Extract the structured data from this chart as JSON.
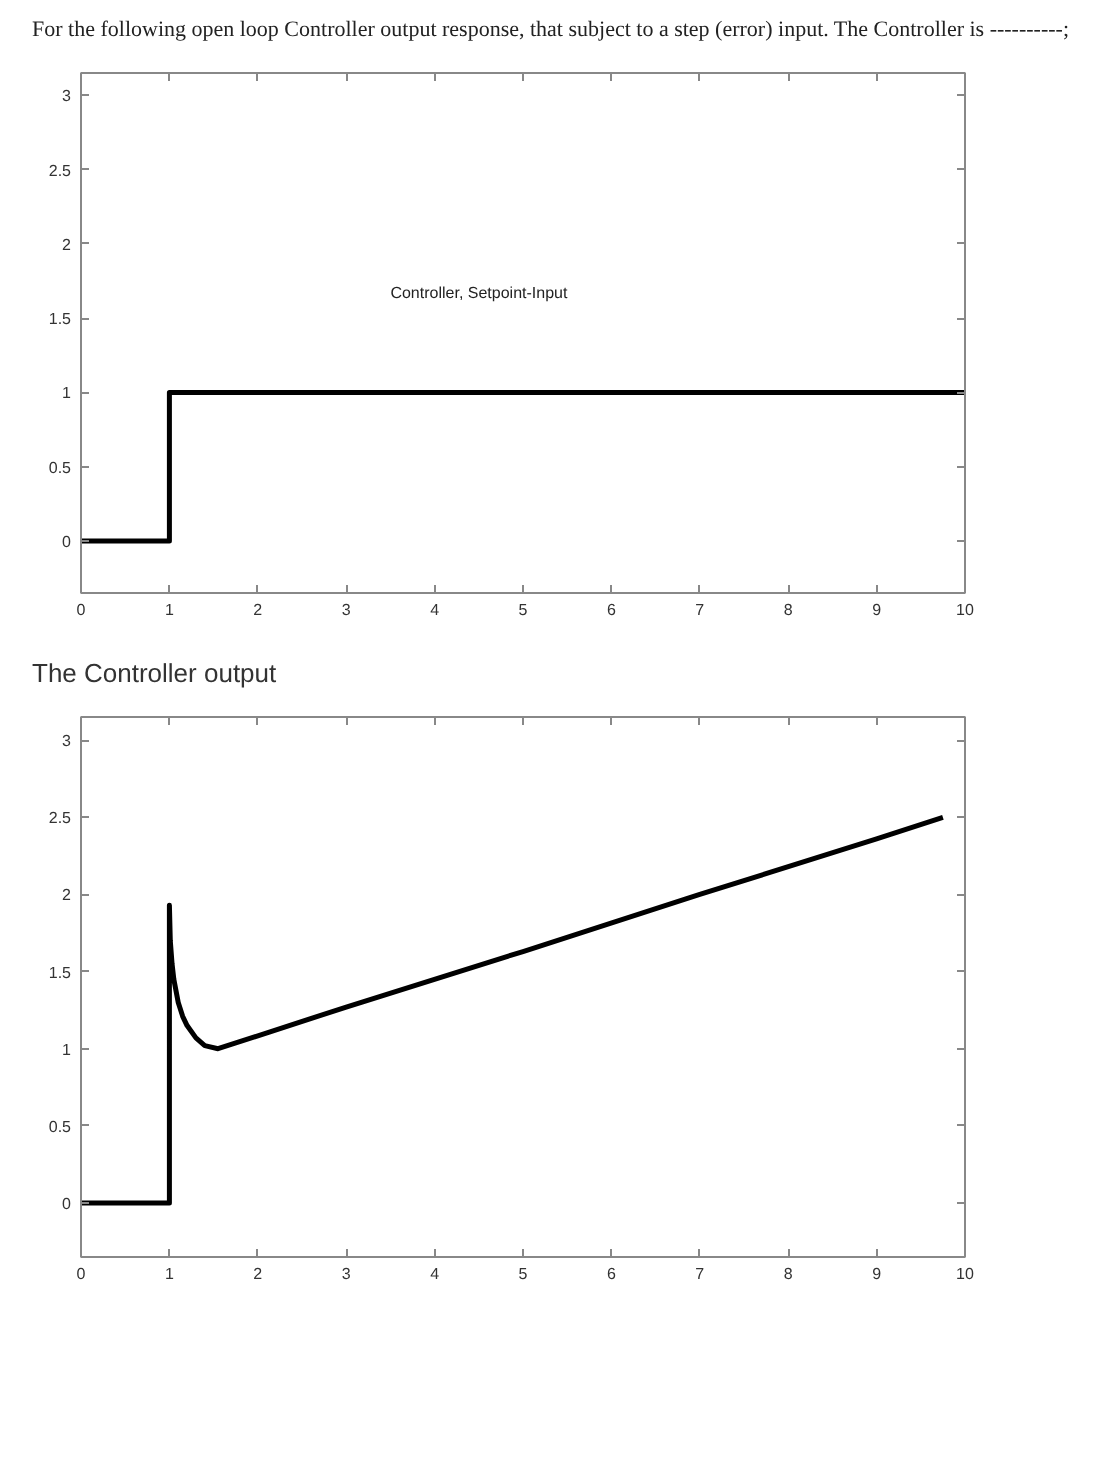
{
  "chart_data": [
    {
      "type": "line",
      "title": "For the following open loop Controller output response, that subject to a step (error) input. The Controller is ----------;",
      "annotations": [
        "Controller, Setpoint-Input"
      ],
      "series": [
        {
          "color": "#000000",
          "x": [
            0,
            1,
            1,
            10
          ],
          "values": [
            0,
            0,
            1,
            1
          ]
        }
      ],
      "xlim": [
        0,
        10
      ],
      "ylim": [
        -0.35,
        3.15
      ],
      "xticks": [
        0,
        1,
        2,
        3,
        4,
        5,
        6,
        7,
        8,
        9,
        10
      ],
      "yticks": [
        0,
        0.5,
        1,
        1.5,
        2,
        2.5,
        3
      ],
      "grid": false,
      "marker": "none",
      "line_style": "solid"
    },
    {
      "type": "line",
      "title": "The Controller output",
      "series": [
        {
          "color": "#000000",
          "x": [
            0,
            1,
            1,
            1.01,
            1.03,
            1.05,
            1.1,
            1.15,
            1.2,
            1.3,
            1.4,
            1.55,
            3,
            5,
            7,
            9,
            9.75
          ],
          "values": [
            0,
            0,
            1.93,
            1.7,
            1.55,
            1.45,
            1.3,
            1.21,
            1.15,
            1.07,
            1.02,
            1.0,
            1.27,
            1.63,
            2.0,
            2.36,
            2.5
          ]
        }
      ],
      "xlim": [
        0,
        10
      ],
      "ylim": [
        -0.35,
        3.15
      ],
      "xticks": [
        0,
        1,
        2,
        3,
        4,
        5,
        6,
        7,
        8,
        9,
        10
      ],
      "yticks": [
        0,
        0.5,
        1,
        1.5,
        2,
        2.5,
        3
      ],
      "grid": false,
      "marker": "none",
      "line_style": "solid"
    }
  ]
}
